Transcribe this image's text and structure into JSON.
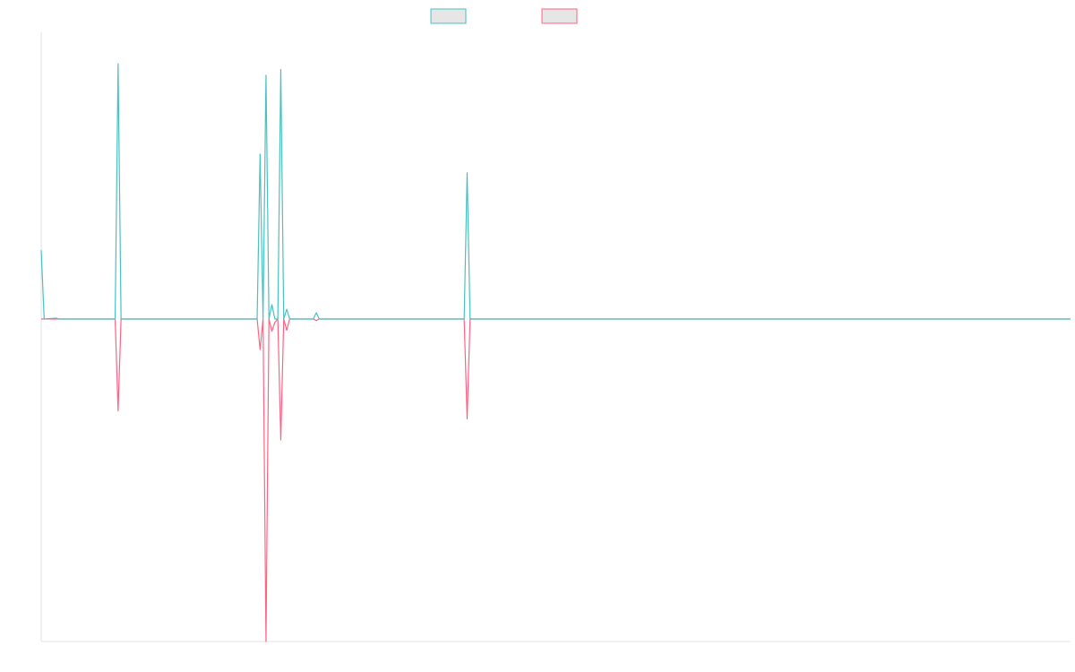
{
  "chart_data": {
    "type": "line",
    "title": "",
    "xlabel": "",
    "ylabel": "",
    "grid": false,
    "legend": "top-center",
    "x_count": 349,
    "ylim": [
      -1,
      1
    ],
    "series": [
      {
        "name": "",
        "color": "#4bc0c0",
        "fill": "#e6e6e6",
        "points": [
          [
            0,
            0.24
          ],
          [
            1,
            0
          ],
          [
            5,
            0.003
          ],
          [
            6,
            0
          ],
          [
            25,
            0
          ],
          [
            26,
            0.89
          ],
          [
            27,
            0
          ],
          [
            73,
            0
          ],
          [
            74,
            0.575
          ],
          [
            75,
            0
          ],
          [
            76,
            0.85
          ],
          [
            77,
            0
          ],
          [
            78,
            0.05
          ],
          [
            79,
            0
          ],
          [
            80,
            0
          ],
          [
            81,
            0.87
          ],
          [
            82,
            0
          ],
          [
            83,
            0.034
          ],
          [
            84,
            0
          ],
          [
            92,
            0
          ],
          [
            93,
            0.022
          ],
          [
            94,
            0
          ],
          [
            143,
            0
          ],
          [
            144,
            0.51
          ],
          [
            145,
            0
          ],
          [
            348,
            0
          ]
        ]
      },
      {
        "name": "",
        "color": "#ff6384",
        "fill": "#e6e6e6",
        "points": [
          [
            0,
            0
          ],
          [
            25,
            0
          ],
          [
            26,
            -0.285
          ],
          [
            27,
            0
          ],
          [
            73,
            0
          ],
          [
            74,
            -0.095
          ],
          [
            75,
            0
          ],
          [
            76,
            -1.0
          ],
          [
            77,
            0
          ],
          [
            78,
            -0.038
          ],
          [
            79,
            -0.01
          ],
          [
            80,
            0
          ],
          [
            81,
            -0.375
          ],
          [
            82,
            0
          ],
          [
            83,
            -0.035
          ],
          [
            84,
            0
          ],
          [
            92,
            0
          ],
          [
            93,
            -0.005
          ],
          [
            94,
            0
          ],
          [
            143,
            0
          ],
          [
            144,
            -0.31
          ],
          [
            145,
            0
          ],
          [
            348,
            0
          ]
        ]
      }
    ]
  }
}
